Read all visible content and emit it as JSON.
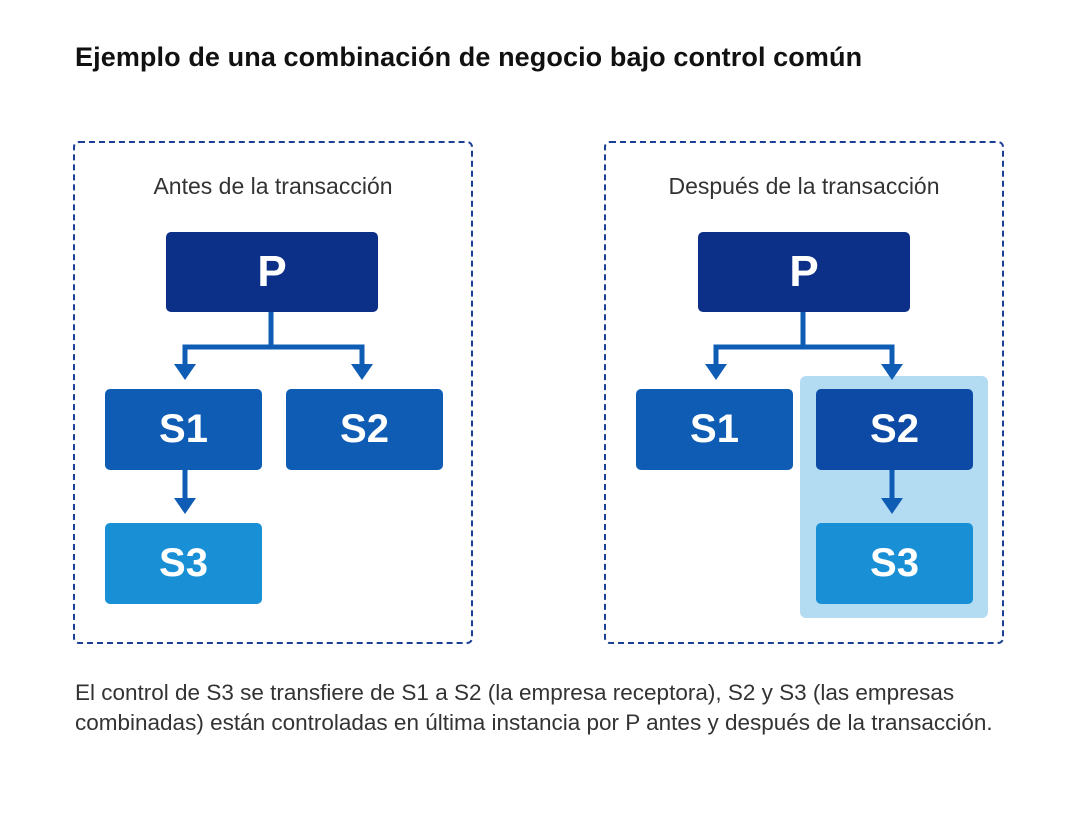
{
  "title": "Ejemplo de una combinación de negocio bajo control común",
  "before": {
    "label": "Antes de la transacción",
    "nodes": {
      "p": "P",
      "s1": "S1",
      "s2": "S2",
      "s3": "S3"
    }
  },
  "after": {
    "label": "Después de la transacción",
    "nodes": {
      "p": "P",
      "s1": "S1",
      "s2": "S2",
      "s3": "S3"
    }
  },
  "caption": "El control de S3 se transfiere de S1 a S2 (la empresa receptora), S2 y S3 (las empresas combinadas) están controladas en última instancia por P antes y después de la transacción.",
  "colors": {
    "parent": "#0c2f87",
    "subsidiary": "#0e5cb4",
    "acquired": "#1990d6",
    "connector": "#0e5cb4",
    "highlight": "#b3dcf2",
    "panel_border": "#1b3f94"
  }
}
